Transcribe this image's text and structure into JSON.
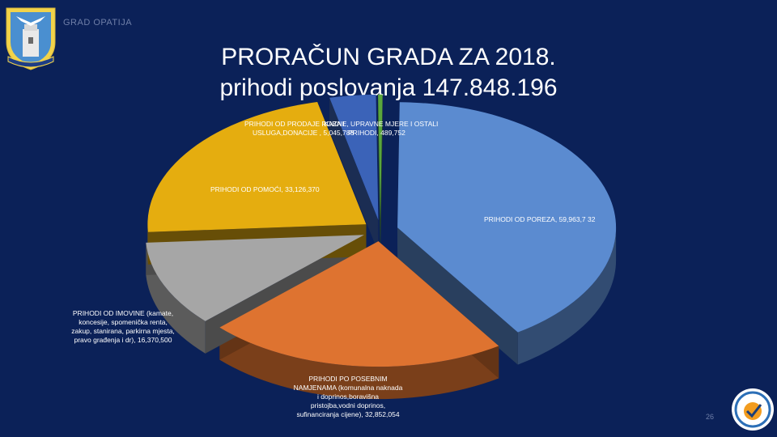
{
  "header": {
    "city_name": "GRAD OPATIJA",
    "title_line1": "PRORAČUN GRADA ZA 2018.",
    "title_line2": "prihodi poslovanja 147.848.196"
  },
  "page_number": "26",
  "colors": {
    "background": "#0b2158",
    "porez": "#5b8bd0",
    "posebne": "#de7330",
    "imovina": "#a6a6a6",
    "pomoc": "#e5ad0f",
    "prodaja": "#3b63b8",
    "kazne": "#5aa63c"
  },
  "chart_data": {
    "type": "pie",
    "title": "",
    "three_d": true,
    "slices": [
      {
        "label": "PRIHODI OD POREZA",
        "value": 59963732,
        "value_text": "59,963,7 32",
        "color": "#5b8bd0"
      },
      {
        "label": "PRIHODI PO POSEBNIM NAMJENAMA (komunalna naknada i doprinos,boravišna pristojba,vodni doprinos, sufinanciranja cijene)",
        "value": 32852054,
        "value_text": "32,852,054",
        "color": "#de7330"
      },
      {
        "label": "PRIHODI OD IMOVINE (kamate, koncesije, spomenička renta, zakup, stanirana, parkima mjesta, pravo građenja i dr), ",
        "value": 16370500,
        "value_text": "16,370,500",
        "color": "#a6a6a6"
      },
      {
        "label": "PRIHODI OD POMOĆI",
        "value": 33126370,
        "value_text": "33,126,370",
        "color": "#e5ad0f"
      },
      {
        "label": "PRIHODI OD PRODAJE ROBA I USLUGA,DONACIJE",
        "value": 5045788,
        "value_text": "5,045,788",
        "color": "#3b63b8"
      },
      {
        "label": "KAZNE, UPRAVNE MJERE I OSTALI PRIHODI",
        "value": 489752,
        "value_text": "489,752",
        "color": "#5aa63c"
      }
    ]
  },
  "labels": {
    "porez": "PRIHODI OD POREZA, 59,963,7 32",
    "pomoc": "PRIHODI OD POMOĆI, 33,126,370",
    "prodaja_line1": "PRIHODI OD PRODAJE ROBA I",
    "prodaja_line2": "USLUGA,DONACIJE , 5,045,788",
    "kazne_line1": "KAZNE, UPRAVNE MJERE I OSTALI",
    "kazne_line2": "PRIHODI, 489,752",
    "imovina": [
      "PRIHODI OD IMOVINE (kamate,",
      "koncesije, spomenička renta,",
      "zakup, stanirana, parkirna mjesta,",
      "pravo građenja i dr), 16,370,500"
    ],
    "posebne": [
      "PRIHODI PO POSEBNIM",
      "NAMJENAMA (komunalna naknada",
      "i doprinos,boravišna",
      "pristojba,vodni doprinos,",
      "sufinanciranja cijene), 32,852,054"
    ]
  }
}
